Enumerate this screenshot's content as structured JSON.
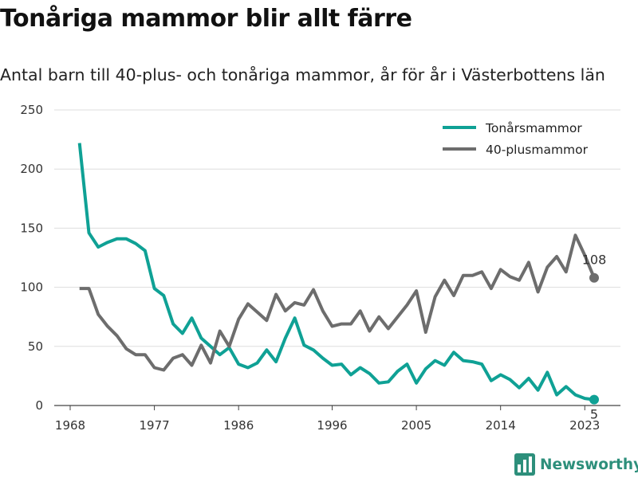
{
  "chart_data": {
    "type": "line",
    "title": "Tonåriga mammor blir allt färre",
    "subtitle": "Antal barn till 40-plus- och tonåriga mammor, år för år i Västerbottens län",
    "xlabel": "",
    "ylabel": "",
    "xlim": [
      1968,
      2024
    ],
    "ylim": [
      0,
      250
    ],
    "x_ticks": [
      "1968",
      "1977",
      "1986",
      "1996",
      "2005",
      "2014",
      "2023"
    ],
    "y_ticks": [
      "0",
      "50",
      "100",
      "150",
      "200",
      "250"
    ],
    "grid": true,
    "legend_position": "top-right",
    "x": [
      1969,
      1970,
      1971,
      1972,
      1973,
      1974,
      1975,
      1976,
      1977,
      1978,
      1979,
      1980,
      1981,
      1982,
      1983,
      1984,
      1985,
      1986,
      1987,
      1988,
      1989,
      1990,
      1991,
      1992,
      1993,
      1994,
      1995,
      1996,
      1997,
      1998,
      1999,
      2000,
      2001,
      2002,
      2003,
      2004,
      2005,
      2006,
      2007,
      2008,
      2009,
      2010,
      2011,
      2012,
      2013,
      2014,
      2015,
      2016,
      2017,
      2018,
      2019,
      2020,
      2021,
      2022,
      2023,
      2024
    ],
    "series": [
      {
        "name": "Tonårsmammor",
        "color": "#0fa195",
        "values": [
          222,
          146,
          134,
          138,
          141,
          141,
          137,
          131,
          99,
          93,
          69,
          61,
          74,
          57,
          50,
          43,
          49,
          35,
          32,
          36,
          47,
          37,
          57,
          74,
          51,
          47,
          40,
          34,
          35,
          26,
          32,
          27,
          19,
          20,
          29,
          35,
          19,
          31,
          38,
          34,
          45,
          38,
          37,
          35,
          21,
          26,
          22,
          15,
          23,
          13,
          28,
          9,
          16,
          9,
          6,
          5
        ],
        "end_label": "5"
      },
      {
        "name": "40-plusmammor",
        "color": "#6d6d6d",
        "values": [
          99,
          99,
          77,
          67,
          59,
          48,
          43,
          43,
          32,
          30,
          40,
          43,
          34,
          51,
          36,
          63,
          50,
          73,
          86,
          79,
          72,
          94,
          80,
          87,
          85,
          98,
          80,
          67,
          69,
          69,
          80,
          63,
          75,
          65,
          75,
          85,
          97,
          62,
          92,
          106,
          93,
          110,
          110,
          113,
          99,
          115,
          109,
          106,
          121,
          96,
          117,
          126,
          113,
          144,
          127,
          108
        ],
        "end_label": "108"
      }
    ]
  },
  "brand": {
    "name": "Newsworthy",
    "logo_icon": "bar-chart-logo-icon",
    "color": "#2d8f7b"
  }
}
